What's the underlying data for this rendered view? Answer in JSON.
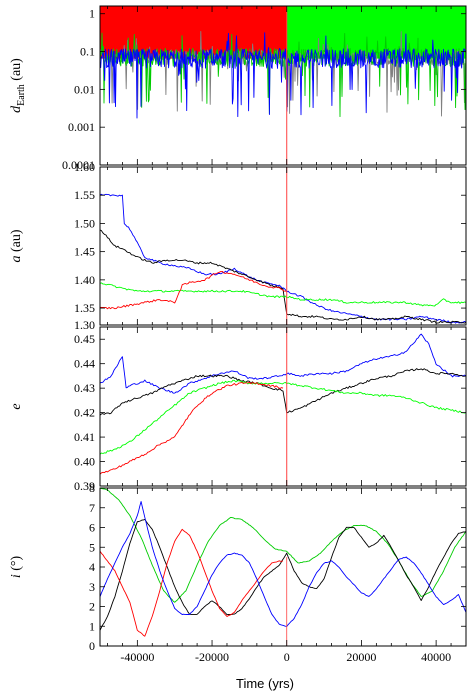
{
  "chart_data": [
    {
      "type": "line",
      "ylabel": "d",
      "ylabel_sub": "Earth",
      "ylabel_unit": " (au)",
      "yscale": "log",
      "ylim": [
        0.0001,
        1.6
      ],
      "yticks": [
        "1",
        "0.1",
        "0.01",
        "0.001",
        "0.0001"
      ],
      "yticks_values": [
        1,
        0.1,
        0.01,
        0.001,
        0.0001
      ],
      "xlim": [
        -50000,
        48000
      ],
      "background_bands": [
        {
          "from": -50000,
          "to": 0,
          "color": "#ff0000"
        },
        {
          "from": 0,
          "to": 48000,
          "color": "#00ff00"
        }
      ],
      "series": [
        {
          "color": "#808080",
          "kind": "noisy",
          "base": 0.07,
          "spread": 1.0
        },
        {
          "color": "#00cc00",
          "kind": "noisy",
          "base": 0.07,
          "spread": 1.2
        },
        {
          "color": "#0000ff",
          "kind": "noisy",
          "base": 0.065,
          "spread": 1.3
        }
      ]
    },
    {
      "type": "line",
      "ylabel": "a",
      "ylabel_unit": " (au)",
      "ylim": [
        1.32,
        1.6
      ],
      "yticks": [
        "1.60",
        "1.55",
        "1.50",
        "1.45",
        "1.40",
        "1.35",
        "1.30"
      ],
      "yticks_values": [
        1.6,
        1.55,
        1.5,
        1.45,
        1.4,
        1.35,
        1.32
      ],
      "xlim": [
        -50000,
        48000
      ],
      "series": [
        {
          "color": "#0000ff",
          "x": [
            -50000,
            -44000,
            -43500,
            -42000,
            -38000,
            -34000,
            -30000,
            -26000,
            -22000,
            -18000,
            -14000,
            -10000,
            -6000,
            -2000,
            0,
            4000,
            8000,
            12000,
            16000,
            20000,
            24000,
            28000,
            32000,
            36000,
            40000,
            44000,
            48000
          ],
          "y": [
            1.55,
            1.55,
            1.5,
            1.49,
            1.44,
            1.43,
            1.425,
            1.42,
            1.41,
            1.41,
            1.42,
            1.405,
            1.395,
            1.39,
            1.38,
            1.37,
            1.355,
            1.345,
            1.34,
            1.335,
            1.33,
            1.33,
            1.33,
            1.335,
            1.33,
            1.325,
            1.325
          ]
        },
        {
          "color": "#000000",
          "x": [
            -50000,
            -48000,
            -46000,
            -44000,
            -40000,
            -36000,
            -32000,
            -28000,
            -24000,
            -20000,
            -16000,
            -12000,
            -8000,
            -4000,
            -1000,
            0,
            4000,
            8000,
            12000,
            16000,
            20000,
            24000,
            28000,
            32000,
            36000,
            40000,
            44000,
            48000
          ],
          "y": [
            1.49,
            1.475,
            1.46,
            1.455,
            1.44,
            1.43,
            1.435,
            1.435,
            1.43,
            1.43,
            1.42,
            1.41,
            1.4,
            1.39,
            1.385,
            1.34,
            1.335,
            1.335,
            1.33,
            1.33,
            1.335,
            1.33,
            1.33,
            1.335,
            1.33,
            1.325,
            1.325,
            1.325
          ]
        },
        {
          "color": "#00ff00",
          "x": [
            -50000,
            -44000,
            -40000,
            -36000,
            -32000,
            -28000,
            -24000,
            -20000,
            -16000,
            -12000,
            -8000,
            -4000,
            0,
            4000,
            8000,
            12000,
            16000,
            20000,
            24000,
            28000,
            32000,
            36000,
            40000,
            42000,
            44000,
            48000
          ],
          "y": [
            1.395,
            1.385,
            1.38,
            1.38,
            1.38,
            1.38,
            1.38,
            1.38,
            1.38,
            1.38,
            1.375,
            1.37,
            1.37,
            1.365,
            1.365,
            1.365,
            1.36,
            1.36,
            1.36,
            1.36,
            1.36,
            1.355,
            1.355,
            1.365,
            1.36,
            1.36
          ]
        },
        {
          "color": "#ff0000",
          "x": [
            -50000,
            -46000,
            -42000,
            -38000,
            -34000,
            -30000,
            -28000,
            -26000,
            -22000,
            -18000,
            -14000,
            -10000,
            -6000,
            -2000,
            0
          ],
          "y": [
            1.35,
            1.35,
            1.355,
            1.36,
            1.365,
            1.36,
            1.39,
            1.395,
            1.4,
            1.415,
            1.41,
            1.4,
            1.39,
            1.385,
            1.38
          ]
        }
      ]
    },
    {
      "type": "line",
      "ylabel": "e",
      "ylim": [
        0.39,
        0.455
      ],
      "yticks": [
        "0.45",
        "0.44",
        "0.43",
        "0.42",
        "0.41",
        "0.40",
        "0.39"
      ],
      "yticks_values": [
        0.45,
        0.44,
        0.43,
        0.42,
        0.41,
        0.4,
        0.39
      ],
      "xlim": [
        -50000,
        48000
      ],
      "series": [
        {
          "color": "#0000ff",
          "x": [
            -50000,
            -47000,
            -44000,
            -43000,
            -42000,
            -38000,
            -34000,
            -30000,
            -26000,
            -22000,
            -18000,
            -14000,
            -10000,
            -6000,
            -2000,
            0,
            4000,
            8000,
            12000,
            16000,
            20000,
            24000,
            28000,
            32000,
            36000,
            38000,
            40000,
            44000,
            48000
          ],
          "y": [
            0.432,
            0.435,
            0.443,
            0.43,
            0.431,
            0.433,
            0.43,
            0.428,
            0.432,
            0.434,
            0.436,
            0.437,
            0.434,
            0.434,
            0.435,
            0.436,
            0.435,
            0.436,
            0.436,
            0.437,
            0.44,
            0.442,
            0.443,
            0.445,
            0.452,
            0.448,
            0.44,
            0.435,
            0.435
          ]
        },
        {
          "color": "#000000",
          "x": [
            -50000,
            -47000,
            -44000,
            -40000,
            -36000,
            -32000,
            -28000,
            -24000,
            -20000,
            -16000,
            -12000,
            -8000,
            -4000,
            -1000,
            0,
            4000,
            8000,
            12000,
            16000,
            20000,
            24000,
            28000,
            32000,
            36000,
            40000,
            44000,
            48000
          ],
          "y": [
            0.419,
            0.42,
            0.424,
            0.426,
            0.428,
            0.431,
            0.433,
            0.435,
            0.435,
            0.435,
            0.433,
            0.432,
            0.43,
            0.429,
            0.42,
            0.422,
            0.425,
            0.428,
            0.43,
            0.432,
            0.434,
            0.435,
            0.437,
            0.438,
            0.436,
            0.436,
            0.435
          ]
        },
        {
          "color": "#00ff00",
          "x": [
            -50000,
            -46000,
            -42000,
            -38000,
            -34000,
            -30000,
            -26000,
            -22000,
            -18000,
            -14000,
            -10000,
            -6000,
            -2000,
            0,
            4000,
            8000,
            12000,
            16000,
            20000,
            24000,
            28000,
            32000,
            36000,
            40000,
            44000,
            48000
          ],
          "y": [
            0.403,
            0.405,
            0.408,
            0.413,
            0.418,
            0.423,
            0.428,
            0.43,
            0.432,
            0.433,
            0.432,
            0.432,
            0.432,
            0.432,
            0.431,
            0.43,
            0.429,
            0.428,
            0.428,
            0.427,
            0.427,
            0.426,
            0.424,
            0.422,
            0.421,
            0.42
          ]
        },
        {
          "color": "#ff0000",
          "x": [
            -50000,
            -46000,
            -42000,
            -38000,
            -34000,
            -30000,
            -27000,
            -24000,
            -20000,
            -16000,
            -12000,
            -8000,
            -4000,
            -1000
          ],
          "y": [
            0.395,
            0.397,
            0.4,
            0.403,
            0.407,
            0.41,
            0.417,
            0.423,
            0.428,
            0.431,
            0.432,
            0.432,
            0.431,
            0.43
          ]
        }
      ]
    },
    {
      "type": "line",
      "ylabel": "i",
      "ylabel_unit": " (°)",
      "ylim": [
        0,
        8
      ],
      "yticks": [
        "8",
        "7",
        "6",
        "5",
        "4",
        "3",
        "2",
        "1",
        "0"
      ],
      "yticks_values": [
        8,
        7,
        6,
        5,
        4,
        3,
        2,
        1,
        0
      ],
      "xlabel": "Time (yrs)",
      "xticks": [
        "-40000",
        "-20000",
        "0",
        "20000",
        "40000"
      ],
      "xticks_values": [
        -40000,
        -20000,
        0,
        20000,
        40000
      ],
      "xlim": [
        -50000,
        48000
      ],
      "series": [
        {
          "color": "#00cc00",
          "x": [
            -50000,
            -48000,
            -45000,
            -42000,
            -39000,
            -36000,
            -33000,
            -30000,
            -27000,
            -24000,
            -21000,
            -18000,
            -15000,
            -12000,
            -9000,
            -6000,
            -3000,
            0,
            3000,
            6000,
            9000,
            12000,
            15000,
            18000,
            21000,
            24000,
            27000,
            30000,
            33000,
            36000,
            39000,
            42000,
            45000,
            48000
          ],
          "y": [
            8,
            7.9,
            7.4,
            6.6,
            5.5,
            4.1,
            2.8,
            2.2,
            2.8,
            4.1,
            5.3,
            6.1,
            6.5,
            6.4,
            6.0,
            5.4,
            4.9,
            4.8,
            4.2,
            4.3,
            4.7,
            5.3,
            5.8,
            6.1,
            6.1,
            5.8,
            5.2,
            4.3,
            3.3,
            2.5,
            2.8,
            3.8,
            5.0,
            5.8
          ]
        },
        {
          "color": "#000000",
          "x": [
            -50000,
            -48000,
            -46000,
            -44000,
            -42000,
            -40000,
            -38000,
            -36000,
            -34000,
            -32000,
            -30000,
            -28000,
            -26000,
            -24000,
            -22000,
            -20000,
            -18000,
            -16000,
            -14000,
            -12000,
            -10000,
            -8000,
            -6000,
            -4000,
            -2000,
            0,
            2000,
            4000,
            6000,
            8000,
            10000,
            12000,
            14000,
            16000,
            18000,
            20000,
            22000,
            24000,
            26000,
            28000,
            30000,
            32000,
            34000,
            36000,
            38000,
            40000,
            42000,
            44000,
            46000,
            48000
          ],
          "y": [
            0.8,
            1.5,
            2.5,
            3.8,
            5.2,
            6.3,
            6.4,
            5.9,
            5.0,
            4.0,
            3.0,
            2.2,
            1.6,
            1.6,
            2.0,
            2.3,
            2.0,
            1.6,
            1.6,
            1.9,
            2.4,
            3.0,
            3.5,
            3.8,
            4.1,
            4.7,
            3.8,
            3.2,
            3.0,
            2.9,
            3.4,
            4.5,
            5.5,
            6.0,
            6.0,
            5.5,
            5.0,
            5.2,
            5.6,
            5.0,
            4.3,
            3.6,
            3.0,
            2.3,
            3.0,
            3.8,
            4.5,
            5.2,
            5.7,
            5.8
          ]
        },
        {
          "color": "#ff0000",
          "x": [
            -50000,
            -46000,
            -42000,
            -40000,
            -38000,
            -36000,
            -34000,
            -32000,
            -30000,
            -28000,
            -26000,
            -24000,
            -22000,
            -20000,
            -18000,
            -16000,
            -14000,
            -12000,
            -10000,
            -8000,
            -6000,
            -4000,
            -2000,
            -1000
          ],
          "y": [
            4.8,
            3.8,
            2.2,
            0.8,
            0.5,
            1.5,
            2.8,
            4.2,
            5.3,
            5.9,
            5.6,
            4.8,
            3.8,
            2.8,
            1.9,
            1.5,
            1.7,
            2.3,
            2.8,
            3.3,
            3.8,
            4.2,
            4.3,
            4.3
          ]
        },
        {
          "color": "#0000ff",
          "x": [
            -50000,
            -48000,
            -46000,
            -44000,
            -42000,
            -40000,
            -39000,
            -38000,
            -36000,
            -34000,
            -32000,
            -30000,
            -28000,
            -26000,
            -24000,
            -22000,
            -20000,
            -18000,
            -16000,
            -14000,
            -12000,
            -10000,
            -8000,
            -6000,
            -4000,
            -2000,
            0,
            2000,
            4000,
            6000,
            8000,
            10000,
            12000,
            14000,
            16000,
            18000,
            20000,
            22000,
            24000,
            26000,
            28000,
            30000,
            32000,
            34000,
            36000,
            38000,
            40000,
            42000,
            44000,
            46000,
            48000
          ],
          "y": [
            2.5,
            3.4,
            4.2,
            5.0,
            5.7,
            6.6,
            7.3,
            6.5,
            5.0,
            3.8,
            2.8,
            1.9,
            1.6,
            1.6,
            2.0,
            2.8,
            3.6,
            4.2,
            4.6,
            4.7,
            4.6,
            4.2,
            3.4,
            2.5,
            1.6,
            1.1,
            1.0,
            1.4,
            2.1,
            3.0,
            3.7,
            4.2,
            4.3,
            4.0,
            3.5,
            3.1,
            2.7,
            2.5,
            2.9,
            3.4,
            3.9,
            4.4,
            4.5,
            4.2,
            3.7,
            3.1,
            2.5,
            2.1,
            2.3,
            2.6,
            1.7
          ]
        }
      ]
    }
  ]
}
